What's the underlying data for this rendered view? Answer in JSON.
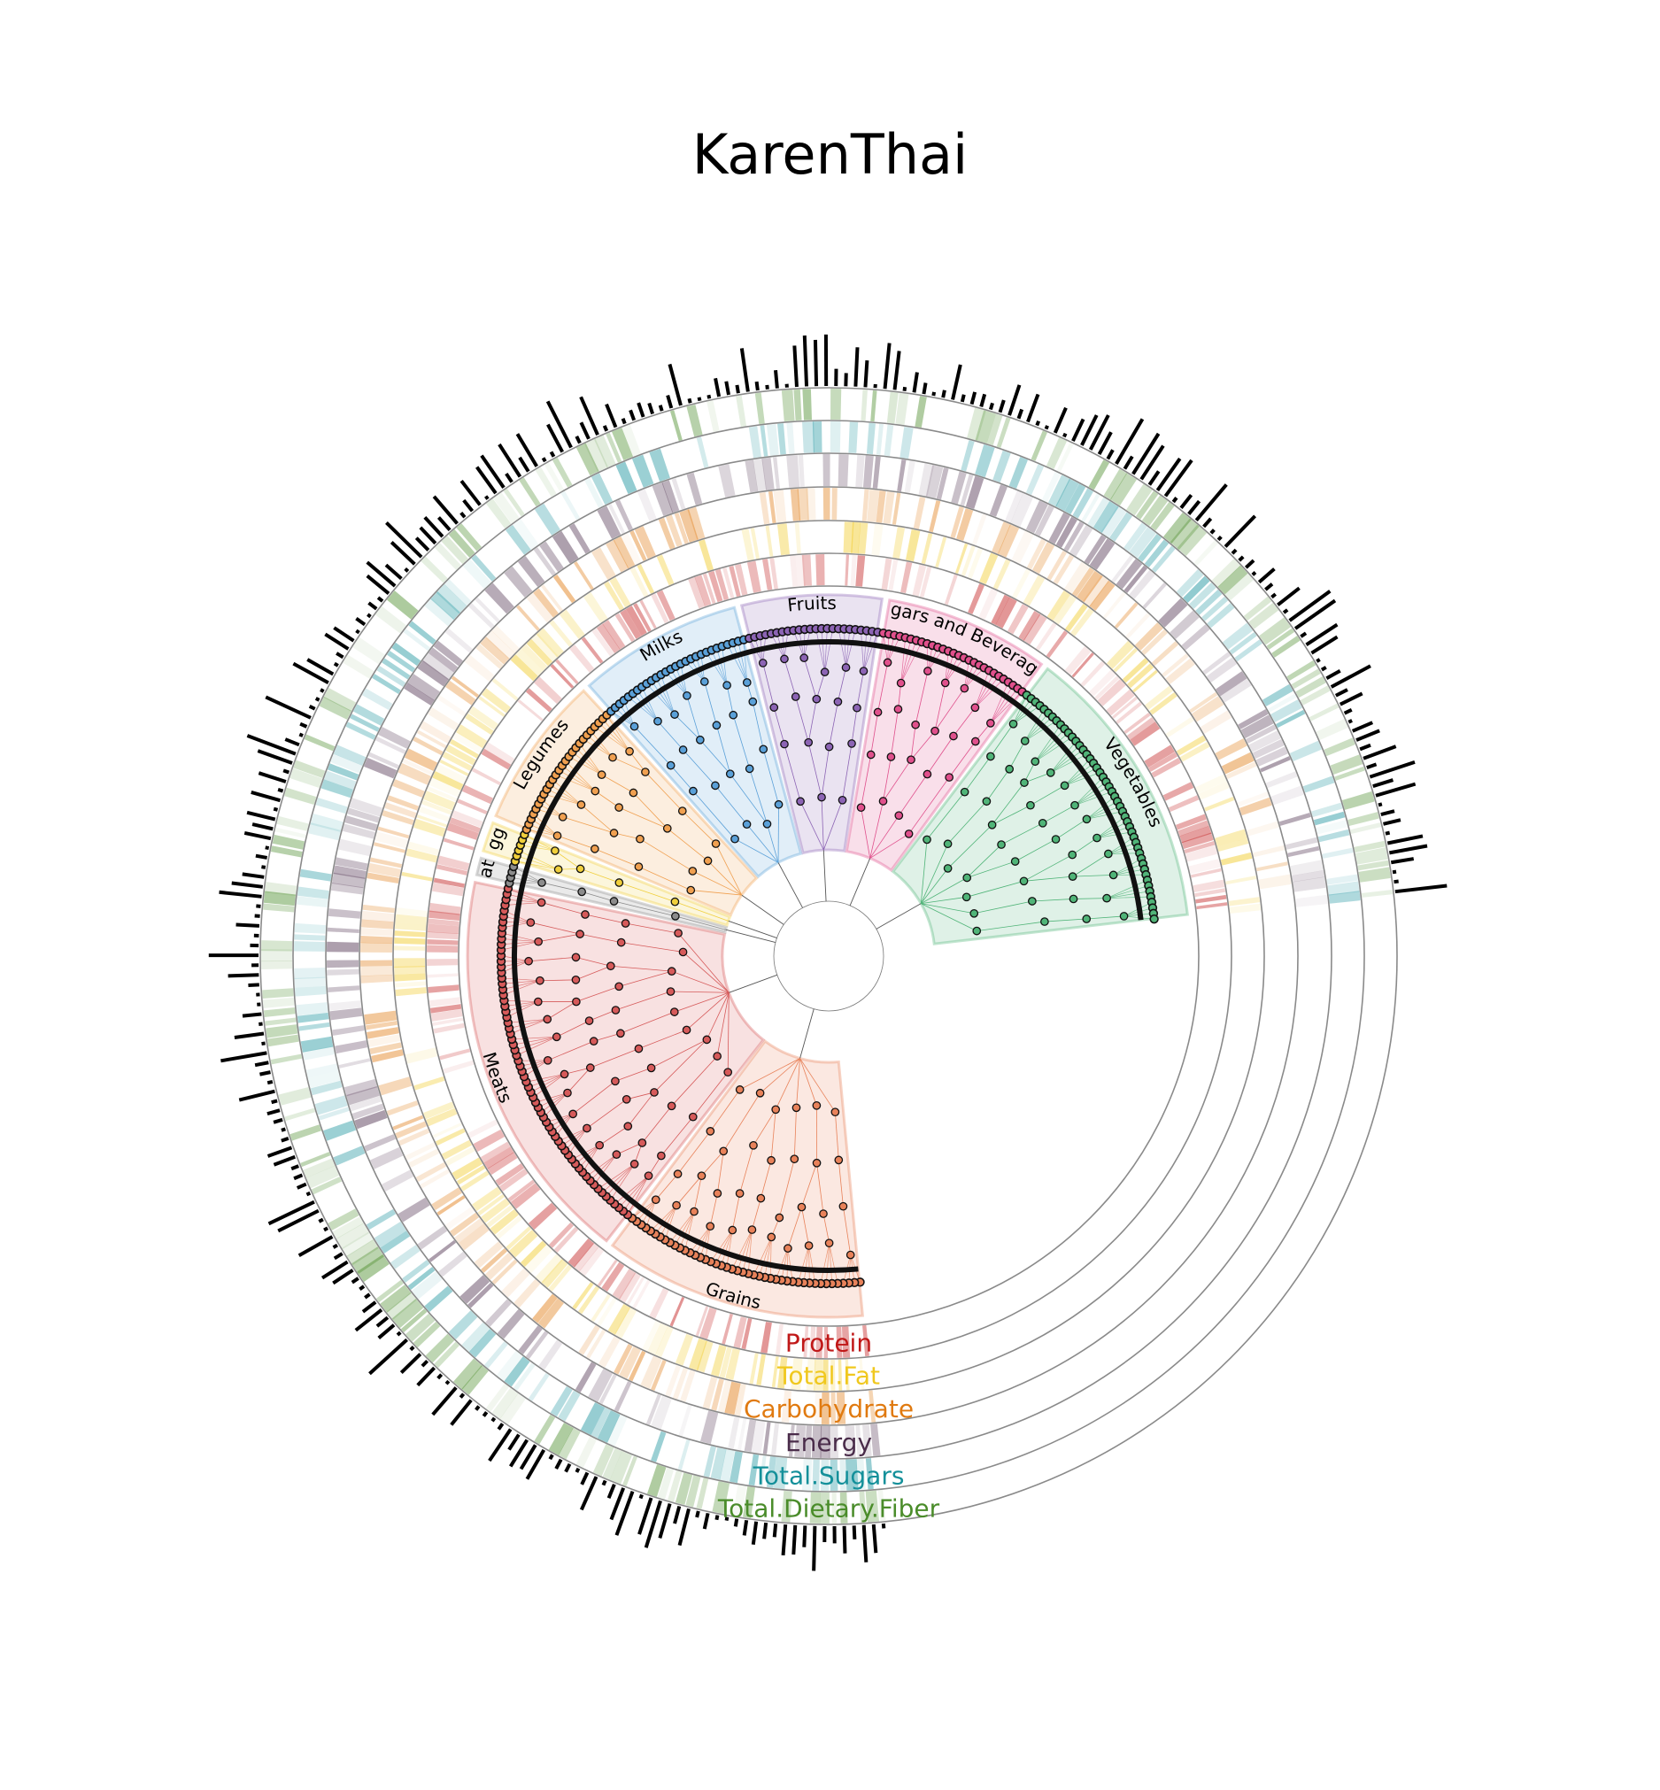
{
  "title": "KarenThai",
  "chart_data": {
    "type": "circular-tree",
    "groups": [
      {
        "name": "Grains",
        "color": "#e8825a",
        "count": 44
      },
      {
        "name": "Meats",
        "color": "#d65a5a",
        "count": 66
      },
      {
        "name": "Fats",
        "color": "#8c8c8c",
        "count": 4
      },
      {
        "name": "Eggs",
        "color": "#f0cf3c",
        "count": 6
      },
      {
        "name": "Legumes",
        "color": "#f0a050",
        "count": 26
      },
      {
        "name": "Milks",
        "color": "#5aa0d8",
        "count": 28
      },
      {
        "name": "Fruits",
        "color": "#8c64b4",
        "count": 24
      },
      {
        "name": "Sugars and Beverages",
        "color": "#e0508c",
        "count": 28
      },
      {
        "name": "Vegetables",
        "color": "#50b478",
        "count": 48
      }
    ],
    "rings": [
      {
        "name": "Protein",
        "color": "#c01818"
      },
      {
        "name": "Total.Fat",
        "color": "#f0c81e"
      },
      {
        "name": "Carbohydrate",
        "color": "#e07a10"
      },
      {
        "name": "Energy",
        "color": "#4a2c4a"
      },
      {
        "name": "Total.Sugars",
        "color": "#14909a"
      },
      {
        "name": "Total.Dietary.Fiber",
        "color": "#4a8c2a"
      }
    ],
    "outer_bars_color": "#000000"
  }
}
